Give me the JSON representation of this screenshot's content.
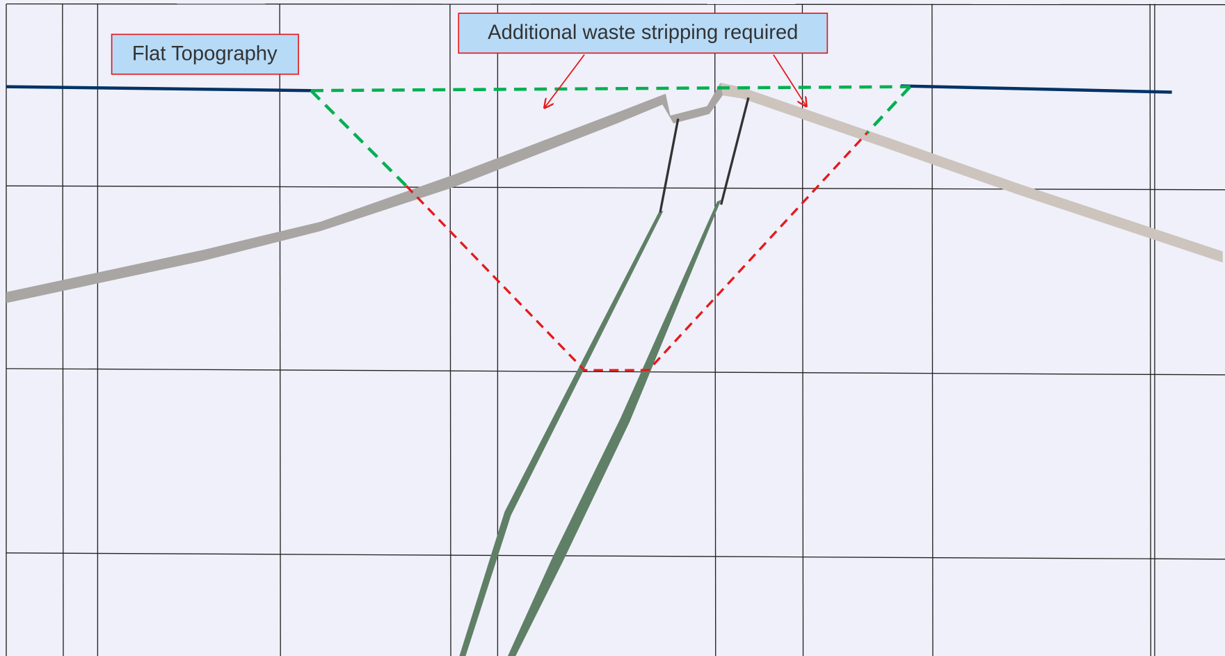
{
  "labels": {
    "flat": "Flat Topography",
    "stripping": "Additional waste stripping required"
  }
}
